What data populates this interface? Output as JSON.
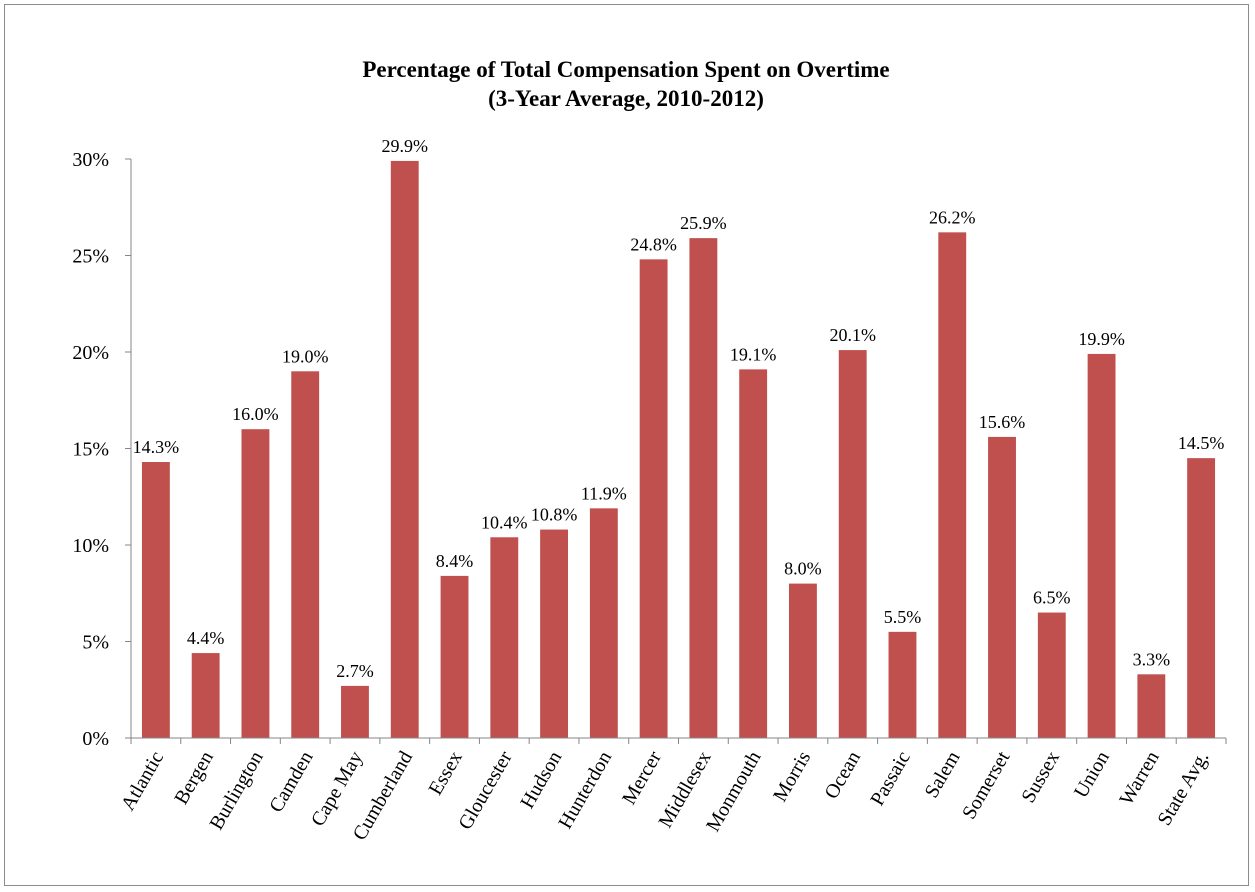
{
  "chart_data": {
    "type": "bar",
    "title": "Percentage of Total Compensation Spent on Overtime",
    "subtitle": "(3-Year Average, 2010-2012)",
    "xlabel": "",
    "ylabel": "",
    "ylim": [
      0,
      30
    ],
    "y_ticks": [
      "0%",
      "5%",
      "10%",
      "15%",
      "20%",
      "25%",
      "30%"
    ],
    "y_tick_values": [
      0,
      5,
      10,
      15,
      20,
      25,
      30
    ],
    "grid": false,
    "legend": "none",
    "bar_color": "#c0504d",
    "categories": [
      "Atlantic",
      "Bergen",
      "Burlington",
      "Camden",
      "Cape May",
      "Cumberland",
      "Essex",
      "Gloucester",
      "Hudson",
      "Hunterdon",
      "Mercer",
      "Middlesex",
      "Monmouth",
      "Morris",
      "Ocean",
      "Passaic",
      "Salem",
      "Somerset",
      "Sussex",
      "Union",
      "Warren",
      "State Avg."
    ],
    "values": [
      14.3,
      4.4,
      16.0,
      19.0,
      2.7,
      29.9,
      8.4,
      10.4,
      10.8,
      11.9,
      24.8,
      25.9,
      19.1,
      8.0,
      20.1,
      5.5,
      26.2,
      15.6,
      6.5,
      19.9,
      3.3,
      14.5
    ],
    "data_labels": [
      "14.3%",
      "4.4%",
      "16.0%",
      "19.0%",
      "2.7%",
      "29.9%",
      "8.4%",
      "10.4%",
      "10.8%",
      "11.9%",
      "24.8%",
      "25.9%",
      "19.1%",
      "8.0%",
      "20.1%",
      "5.5%",
      "26.2%",
      "15.6%",
      "6.5%",
      "19.9%",
      "3.3%",
      "14.5%"
    ]
  }
}
